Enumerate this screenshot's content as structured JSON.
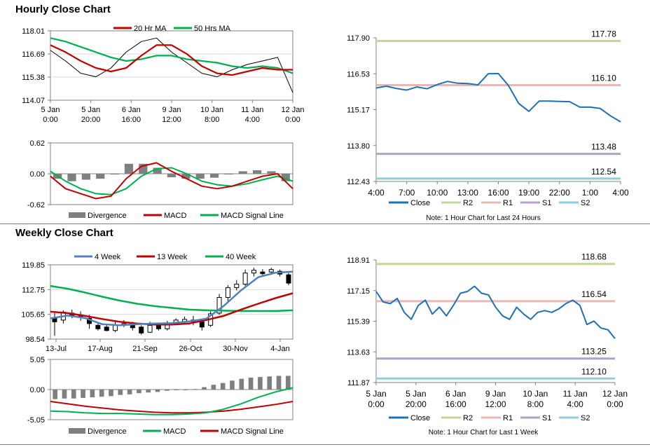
{
  "sections": {
    "hourly_title": "Hourly Close Chart",
    "weekly_title": "Weekly Close Chart"
  },
  "colors": {
    "dark_red": "#c00000",
    "green": "#00b050",
    "blue": "#4f81bd",
    "close_blue": "#1f6fb5",
    "r2": "#c4d79b",
    "r1": "#e6b9b8",
    "s1": "#b1a0c7",
    "s2": "#92cddc",
    "divergence": "#7f7f7f"
  },
  "chart_data": [
    {
      "id": "hourly_price",
      "type": "line",
      "legend": [
        "20 Hr MA",
        "50 Hrs MA"
      ],
      "y_ticks": [
        "118.01",
        "116.69",
        "115.38",
        "114.07"
      ],
      "ylim": [
        114.07,
        118.01
      ],
      "x_ticks": [
        [
          "5 Jan",
          "0:00"
        ],
        [
          "5 Jan",
          "20:00"
        ],
        [
          "6 Jan",
          "16:00"
        ],
        [
          "9 Jan",
          "12:00"
        ],
        [
          "10 Jan",
          "8:00"
        ],
        [
          "11 Jan",
          "4:00"
        ],
        [
          "12 Jan",
          "0:00"
        ]
      ],
      "series": [
        {
          "name": "20 Hr MA",
          "values": [
            117.2,
            116.8,
            116.3,
            115.9,
            115.7,
            115.9,
            116.6,
            117.2,
            117.2,
            116.7,
            116.0,
            115.6,
            115.5,
            115.7,
            115.9,
            115.8,
            115.8
          ]
        },
        {
          "name": "50 Hrs MA",
          "values": [
            117.6,
            117.4,
            117.1,
            116.8,
            116.5,
            116.3,
            116.4,
            116.6,
            116.6,
            116.4,
            116.3,
            116.2,
            116.0,
            115.9,
            116.0,
            115.9,
            115.6
          ]
        }
      ],
      "close": [
        116.9,
        116.3,
        115.6,
        115.4,
        115.9,
        116.8,
        117.4,
        117.6,
        116.8,
        116.2,
        115.6,
        115.4,
        115.8,
        116.1,
        116.3,
        116.5,
        114.5
      ]
    },
    {
      "id": "hourly_macd",
      "type": "line",
      "legend": [
        "Divergence",
        "MACD",
        "MACD Signal Line"
      ],
      "y_ticks": [
        "0.62",
        "0.00",
        "-0.62"
      ],
      "ylim": [
        -0.62,
        0.62
      ],
      "series": [
        {
          "name": "MACD",
          "values": [
            -0.05,
            -0.3,
            -0.4,
            -0.5,
            -0.45,
            -0.1,
            0.15,
            0.22,
            0.05,
            -0.1,
            -0.25,
            -0.3,
            -0.25,
            -0.15,
            -0.05,
            0.0,
            -0.3
          ]
        },
        {
          "name": "MACD Signal Line",
          "values": [
            0.05,
            -0.15,
            -0.3,
            -0.4,
            -0.42,
            -0.3,
            -0.05,
            0.1,
            0.12,
            0.0,
            -0.15,
            -0.22,
            -0.25,
            -0.2,
            -0.12,
            -0.05,
            -0.15
          ]
        }
      ],
      "divergence": [
        -0.1,
        -0.15,
        -0.12,
        -0.1,
        0.0,
        0.2,
        0.2,
        0.12,
        -0.07,
        -0.1,
        -0.1,
        -0.08,
        0.0,
        0.05,
        0.07,
        0.05,
        -0.15
      ]
    },
    {
      "id": "hourly_close",
      "type": "line",
      "y_ticks": [
        "117.90",
        "116.53",
        "115.17",
        "113.80",
        "112.43"
      ],
      "ylim": [
        112.43,
        117.9
      ],
      "x_ticks": [
        "4:00",
        "7:00",
        "10:00",
        "13:00",
        "16:00",
        "19:00",
        "22:00",
        "1:00",
        "4:00"
      ],
      "series": [
        {
          "name": "Close",
          "values": [
            115.99,
            116.06,
            115.97,
            115.91,
            116.03,
            115.96,
            116.12,
            116.24,
            116.17,
            116.16,
            116.11,
            116.53,
            116.54,
            116.08,
            115.4,
            115.1,
            115.49,
            115.49,
            115.48,
            115.47,
            115.26,
            115.26,
            115.21,
            114.93,
            114.7
          ]
        }
      ],
      "levels": [
        {
          "name": "R2",
          "value": 117.78,
          "label": "117.78"
        },
        {
          "name": "R1",
          "value": 116.1,
          "label": "116.10"
        },
        {
          "name": "S1",
          "value": 113.48,
          "label": "113.48"
        },
        {
          "name": "S2",
          "value": 112.54,
          "label": "112.54"
        }
      ],
      "legend": [
        "Close",
        "R2",
        "R1",
        "S1",
        "S2"
      ],
      "note": "Note: 1 Hour Chart for Last 24 Hours"
    },
    {
      "id": "weekly_price",
      "type": "line",
      "legend": [
        "4 Week",
        "13 Week",
        "40 Week"
      ],
      "y_ticks": [
        "119.85",
        "112.75",
        "105.65",
        "98.54"
      ],
      "ylim": [
        98.54,
        119.85
      ],
      "x_ticks": [
        "13-Jul",
        "17-Aug",
        "21-Sep",
        "26-Oct",
        "30-Nov",
        "4-Jan"
      ],
      "series": [
        {
          "name": "4 Week",
          "values": [
            104.5,
            105.3,
            104.6,
            102.8,
            102.5,
            102.8,
            103.0,
            103.1,
            103.6,
            104.4,
            108.0,
            112.5,
            116.3,
            117.6,
            117.9
          ]
        },
        {
          "name": "13 Week",
          "values": [
            106.4,
            106.0,
            105.2,
            104.3,
            103.5,
            103.0,
            102.7,
            102.7,
            103.0,
            104.0,
            105.2,
            107.0,
            108.7,
            110.3,
            111.7
          ]
        },
        {
          "name": "40 Week",
          "values": [
            113.8,
            113.0,
            111.9,
            110.7,
            109.6,
            108.7,
            108.0,
            107.5,
            107.0,
            106.8,
            106.7,
            106.6,
            106.6,
            106.6,
            106.8
          ]
        }
      ],
      "candles": [
        {
          "o": 104.5,
          "c": 103.5,
          "h": 106.0,
          "l": 99.5
        },
        {
          "o": 104.0,
          "c": 106.3,
          "h": 106.8,
          "l": 103.0
        },
        {
          "o": 106.0,
          "c": 105.3,
          "h": 107.0,
          "l": 104.5
        },
        {
          "o": 105.5,
          "c": 104.8,
          "h": 106.5,
          "l": 103.8
        },
        {
          "o": 104.5,
          "c": 103.0,
          "h": 105.5,
          "l": 101.5
        },
        {
          "o": 102.5,
          "c": 101.5,
          "h": 103.0,
          "l": 101.0
        },
        {
          "o": 102.0,
          "c": 101.0,
          "h": 102.5,
          "l": 100.8
        },
        {
          "o": 101.0,
          "c": 102.5,
          "h": 104.0,
          "l": 100.5
        },
        {
          "o": 102.8,
          "c": 103.0,
          "h": 104.0,
          "l": 102.0
        },
        {
          "o": 102.8,
          "c": 101.8,
          "h": 103.5,
          "l": 101.0
        },
        {
          "o": 102.0,
          "c": 100.3,
          "h": 102.5,
          "l": 99.8
        },
        {
          "o": 100.5,
          "c": 102.5,
          "h": 103.5,
          "l": 100.3
        },
        {
          "o": 102.5,
          "c": 101.5,
          "h": 103.0,
          "l": 101.0
        },
        {
          "o": 101.5,
          "c": 103.0,
          "h": 103.8,
          "l": 101.0
        },
        {
          "o": 103.0,
          "c": 104.0,
          "h": 104.5,
          "l": 102.5
        },
        {
          "o": 103.5,
          "c": 104.2,
          "h": 105.0,
          "l": 103.0
        },
        {
          "o": 104.0,
          "c": 103.5,
          "h": 105.2,
          "l": 102.5
        },
        {
          "o": 103.5,
          "c": 102.0,
          "h": 104.0,
          "l": 101.0
        },
        {
          "o": 102.5,
          "c": 105.8,
          "h": 106.5,
          "l": 102.0
        },
        {
          "o": 106.0,
          "c": 110.5,
          "h": 111.5,
          "l": 105.5
        },
        {
          "o": 110.5,
          "c": 113.3,
          "h": 114.0,
          "l": 109.5
        },
        {
          "o": 113.3,
          "c": 114.3,
          "h": 115.5,
          "l": 112.5
        },
        {
          "o": 114.3,
          "c": 117.5,
          "h": 118.5,
          "l": 113.8
        },
        {
          "o": 117.5,
          "c": 118.3,
          "h": 119.0,
          "l": 116.5
        },
        {
          "o": 117.8,
          "c": 117.3,
          "h": 118.6,
          "l": 116.7
        },
        {
          "o": 117.8,
          "c": 118.5,
          "h": 119.0,
          "l": 117.0
        },
        {
          "o": 118.0,
          "c": 117.2,
          "h": 118.5,
          "l": 116.5
        },
        {
          "o": 117.0,
          "c": 114.6,
          "h": 117.5,
          "l": 114.0
        }
      ]
    },
    {
      "id": "weekly_macd",
      "type": "line",
      "legend": [
        "Divergence",
        "MACD",
        "MACD Signal Line"
      ],
      "y_ticks": [
        "5.05",
        "0.00",
        "-5.05"
      ],
      "ylim": [
        -5.05,
        5.05
      ],
      "series": [
        {
          "name": "MACD",
          "values": [
            -3.6,
            -3.7,
            -3.9,
            -4.0,
            -4.0,
            -4.1,
            -4.2,
            -4.2,
            -4.1,
            -3.9,
            -3.3,
            -2.4,
            -1.3,
            -0.4,
            0.3
          ]
        },
        {
          "name": "MACD Signal Line",
          "values": [
            -2.0,
            -2.4,
            -2.8,
            -3.1,
            -3.4,
            -3.6,
            -3.8,
            -3.9,
            -3.9,
            -3.8,
            -3.6,
            -3.3,
            -2.9,
            -2.5,
            -2.0
          ]
        }
      ],
      "divergence": [
        -1.6,
        -1.5,
        -1.5,
        -1.4,
        -1.3,
        -1.2,
        -1.1,
        -0.9,
        -0.8,
        -0.6,
        -0.5,
        -0.4,
        -0.2,
        -0.1,
        -0.05,
        0.1,
        0.4,
        0.8,
        1.1,
        1.5,
        1.8,
        2.0,
        2.1,
        2.2,
        2.3,
        2.3
      ]
    },
    {
      "id": "weekly_close",
      "type": "line",
      "y_ticks": [
        "118.91",
        "117.15",
        "115.39",
        "113.63",
        "111.87"
      ],
      "ylim": [
        111.87,
        118.91
      ],
      "x_ticks": [
        [
          "5 Jan",
          "0:00"
        ],
        [
          "5 Jan",
          "20:00"
        ],
        [
          "6 Jan",
          "16:00"
        ],
        [
          "9 Jan",
          "12:00"
        ],
        [
          "10 Jan",
          "8:00"
        ],
        [
          "11 Jan",
          "4:00"
        ],
        [
          "12 Jan",
          "0:00"
        ]
      ],
      "series": [
        {
          "name": "Close",
          "values": [
            117.1,
            116.5,
            116.4,
            116.7,
            115.9,
            115.5,
            116.3,
            116.6,
            115.8,
            116.2,
            115.7,
            116.3,
            117.0,
            117.1,
            117.4,
            117.0,
            116.9,
            116.2,
            115.7,
            115.5,
            116.2,
            115.8,
            115.5,
            115.9,
            116.0,
            115.9,
            116.1,
            116.4,
            116.6,
            116.3,
            115.2,
            115.4,
            115.0,
            114.9,
            114.4
          ]
        }
      ],
      "levels": [
        {
          "name": "R2",
          "value": 118.68,
          "label": "118.68"
        },
        {
          "name": "R1",
          "value": 116.54,
          "label": "116.54"
        },
        {
          "name": "S1",
          "value": 113.25,
          "label": "113.25"
        },
        {
          "name": "S2",
          "value": 112.1,
          "label": "112.10"
        }
      ],
      "legend": [
        "Close",
        "R2",
        "R1",
        "S1",
        "S2"
      ],
      "note": "Note: 1 Hour Chart for Last 1 Week"
    }
  ]
}
